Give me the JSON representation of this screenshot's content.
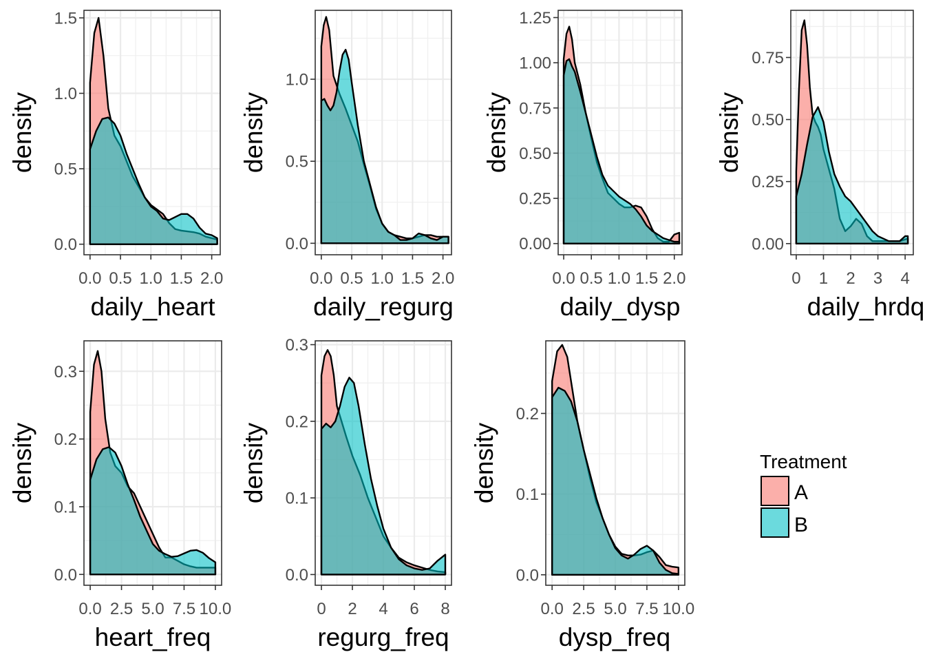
{
  "colors": {
    "A": "#F8766D",
    "B": "#00BFC4"
  },
  "legend": {
    "title": "Treatment",
    "entries": [
      {
        "key": "A",
        "label": "A"
      },
      {
        "key": "B",
        "label": "B"
      }
    ]
  },
  "chart_data": [
    {
      "type": "area",
      "xlabel": "daily_heart",
      "ylabel": "density",
      "xlim": [
        -0.1,
        2.14
      ],
      "ylim": [
        -0.07,
        1.55
      ],
      "xticks": [
        0.0,
        0.5,
        1.0,
        1.5,
        2.0
      ],
      "xtick_labels": [
        "0.0",
        "0.5",
        "1.0",
        "1.5",
        "2.0"
      ],
      "yticks": [
        0.0,
        0.5,
        1.0,
        1.5
      ],
      "ytick_labels": [
        "0.0",
        "0.5",
        "1.0",
        "1.5"
      ],
      "grid": true,
      "series": [
        {
          "name": "A",
          "x": [
            0.0,
            0.07,
            0.14,
            0.22,
            0.3,
            0.4,
            0.5,
            0.6,
            0.7,
            0.8,
            0.9,
            1.0,
            1.1,
            1.2,
            1.3,
            1.4,
            1.5,
            1.6,
            1.7,
            1.8,
            1.9,
            2.0,
            2.09
          ],
          "y": [
            1.07,
            1.4,
            1.5,
            1.25,
            0.9,
            0.72,
            0.65,
            0.55,
            0.45,
            0.38,
            0.31,
            0.26,
            0.23,
            0.2,
            0.14,
            0.1,
            0.09,
            0.085,
            0.08,
            0.07,
            0.05,
            0.04,
            0.03
          ]
        },
        {
          "name": "B",
          "x": [
            0.0,
            0.1,
            0.2,
            0.3,
            0.4,
            0.5,
            0.6,
            0.7,
            0.8,
            0.9,
            1.0,
            1.1,
            1.2,
            1.3,
            1.4,
            1.5,
            1.6,
            1.7,
            1.8,
            1.9,
            2.0,
            2.09
          ],
          "y": [
            0.63,
            0.75,
            0.83,
            0.84,
            0.8,
            0.72,
            0.6,
            0.5,
            0.4,
            0.31,
            0.25,
            0.22,
            0.17,
            0.16,
            0.18,
            0.2,
            0.2,
            0.17,
            0.11,
            0.07,
            0.06,
            0.04
          ]
        }
      ]
    },
    {
      "type": "area",
      "xlabel": "daily_regurg",
      "ylabel": "density",
      "xlim": [
        -0.1,
        2.14
      ],
      "ylim": [
        -0.07,
        1.42
      ],
      "xticks": [
        0.0,
        0.5,
        1.0,
        1.5,
        2.0
      ],
      "xtick_labels": [
        "0.0",
        "0.5",
        "1.0",
        "1.5",
        "2.0"
      ],
      "yticks": [
        0.0,
        0.5,
        1.0
      ],
      "ytick_labels": [
        "0.0",
        "0.5",
        "1.0"
      ],
      "grid": true,
      "series": [
        {
          "name": "A",
          "x": [
            0.0,
            0.04,
            0.08,
            0.13,
            0.2,
            0.3,
            0.4,
            0.5,
            0.6,
            0.7,
            0.8,
            0.9,
            1.0,
            1.1,
            1.2,
            1.3,
            1.4,
            1.5,
            1.6,
            1.7,
            1.8,
            1.9,
            2.0,
            2.09
          ],
          "y": [
            1.2,
            1.33,
            1.38,
            1.3,
            1.02,
            0.91,
            0.82,
            0.72,
            0.62,
            0.48,
            0.35,
            0.21,
            0.12,
            0.07,
            0.05,
            0.04,
            0.03,
            0.03,
            0.04,
            0.05,
            0.05,
            0.04,
            0.04,
            0.04
          ]
        },
        {
          "name": "B",
          "x": [
            0.0,
            0.05,
            0.1,
            0.15,
            0.2,
            0.25,
            0.3,
            0.35,
            0.4,
            0.45,
            0.5,
            0.6,
            0.7,
            0.8,
            0.9,
            1.0,
            1.1,
            1.2,
            1.3,
            1.4,
            1.5,
            1.6,
            1.7,
            1.8,
            1.9,
            2.0,
            2.09
          ],
          "y": [
            0.87,
            0.88,
            0.84,
            0.81,
            0.84,
            0.92,
            1.05,
            1.15,
            1.18,
            1.12,
            0.98,
            0.72,
            0.5,
            0.36,
            0.22,
            0.12,
            0.07,
            0.05,
            0.02,
            0.02,
            0.03,
            0.06,
            0.05,
            0.03,
            0.02,
            0.04,
            0.04
          ]
        }
      ]
    },
    {
      "type": "area",
      "xlabel": "daily_dysp",
      "ylabel": "density",
      "xlim": [
        -0.1,
        2.14
      ],
      "ylim": [
        -0.062,
        1.29
      ],
      "xticks": [
        0.0,
        0.5,
        1.0,
        1.5,
        2.0
      ],
      "xtick_labels": [
        "0.0",
        "0.5",
        "1.0",
        "1.5",
        "2.0"
      ],
      "yticks": [
        0.0,
        0.25,
        0.5,
        0.75,
        1.0,
        1.25
      ],
      "ytick_labels": [
        "0.00",
        "0.25",
        "0.50",
        "0.75",
        "1.00",
        "1.25"
      ],
      "grid": true,
      "series": [
        {
          "name": "A",
          "x": [
            0.0,
            0.05,
            0.1,
            0.15,
            0.2,
            0.3,
            0.4,
            0.5,
            0.6,
            0.7,
            0.8,
            0.9,
            1.0,
            1.1,
            1.2,
            1.3,
            1.4,
            1.5,
            1.6,
            1.7,
            1.8,
            1.9,
            2.0,
            2.09
          ],
          "y": [
            1.02,
            1.16,
            1.2,
            1.13,
            1.0,
            0.88,
            0.72,
            0.58,
            0.45,
            0.36,
            0.28,
            0.25,
            0.22,
            0.2,
            0.2,
            0.21,
            0.2,
            0.15,
            0.08,
            0.03,
            0.01,
            0.01,
            0.05,
            0.06
          ]
        },
        {
          "name": "B",
          "x": [
            0.0,
            0.05,
            0.1,
            0.15,
            0.2,
            0.3,
            0.4,
            0.5,
            0.6,
            0.7,
            0.8,
            0.9,
            1.0,
            1.1,
            1.2,
            1.3,
            1.4,
            1.5,
            1.6,
            1.7,
            1.8,
            1.9,
            2.0,
            2.09
          ],
          "y": [
            0.93,
            1.01,
            1.02,
            0.98,
            0.95,
            0.84,
            0.72,
            0.6,
            0.48,
            0.38,
            0.32,
            0.29,
            0.26,
            0.24,
            0.22,
            0.19,
            0.15,
            0.1,
            0.07,
            0.05,
            0.03,
            0.02,
            0.01,
            0.01
          ]
        }
      ]
    },
    {
      "type": "area",
      "xlabel": "daily_hrdq",
      "ylabel": "density",
      "xlim": [
        -0.2,
        4.3
      ],
      "ylim": [
        -0.045,
        0.94
      ],
      "xticks": [
        0,
        1,
        2,
        3,
        4
      ],
      "xtick_labels": [
        "0",
        "1",
        "2",
        "3",
        "4"
      ],
      "yticks": [
        0.0,
        0.25,
        0.5,
        0.75
      ],
      "ytick_labels": [
        "0.00",
        "0.25",
        "0.50",
        "0.75"
      ],
      "grid": true,
      "series": [
        {
          "name": "A",
          "x": [
            0.0,
            0.1,
            0.2,
            0.3,
            0.4,
            0.5,
            0.6,
            0.7,
            0.8,
            0.9,
            1.0,
            1.2,
            1.4,
            1.6,
            1.8,
            2.0,
            2.2,
            2.4,
            2.6,
            2.8,
            3.0,
            3.4,
            3.8,
            4.1
          ],
          "y": [
            0.29,
            0.62,
            0.86,
            0.9,
            0.8,
            0.63,
            0.52,
            0.49,
            0.47,
            0.44,
            0.38,
            0.3,
            0.22,
            0.1,
            0.05,
            0.07,
            0.1,
            0.08,
            0.03,
            0.01,
            0.01,
            0.01,
            0.01,
            0.02
          ]
        },
        {
          "name": "B",
          "x": [
            0.0,
            0.2,
            0.4,
            0.6,
            0.8,
            1.0,
            1.2,
            1.4,
            1.6,
            1.8,
            2.0,
            2.2,
            2.4,
            2.6,
            2.8,
            3.0,
            3.2,
            3.4,
            3.6,
            3.8,
            4.0,
            4.1
          ],
          "y": [
            0.19,
            0.28,
            0.4,
            0.51,
            0.55,
            0.49,
            0.37,
            0.28,
            0.23,
            0.19,
            0.17,
            0.14,
            0.11,
            0.08,
            0.05,
            0.03,
            0.02,
            0.01,
            0.01,
            0.01,
            0.03,
            0.03
          ]
        }
      ]
    },
    {
      "type": "area",
      "xlabel": "heart_freq",
      "ylabel": "density",
      "xlim": [
        -0.5,
        10.5
      ],
      "ylim": [
        -0.016,
        0.345
      ],
      "xticks": [
        0.0,
        2.5,
        5.0,
        7.5,
        10.0
      ],
      "xtick_labels": [
        "0.0",
        "2.5",
        "5.0",
        "7.5",
        "10.0"
      ],
      "yticks": [
        0.0,
        0.1,
        0.2,
        0.3
      ],
      "ytick_labels": [
        "0.0",
        "0.1",
        "0.2",
        "0.3"
      ],
      "grid": true,
      "series": [
        {
          "name": "A",
          "x": [
            0.0,
            0.3,
            0.6,
            0.9,
            1.2,
            1.6,
            2.0,
            2.5,
            3.0,
            3.5,
            4.0,
            4.5,
            5.0,
            5.5,
            6.0,
            6.5,
            7.0,
            7.5,
            8.0,
            8.5,
            9.0,
            10.0
          ],
          "y": [
            0.24,
            0.31,
            0.33,
            0.3,
            0.23,
            0.18,
            0.16,
            0.15,
            0.13,
            0.12,
            0.1,
            0.08,
            0.06,
            0.04,
            0.025,
            0.025,
            0.02,
            0.015,
            0.012,
            0.01,
            0.01,
            0.01
          ]
        },
        {
          "name": "B",
          "x": [
            0.0,
            0.5,
            1.0,
            1.5,
            2.0,
            2.5,
            3.0,
            3.5,
            4.0,
            4.5,
            5.0,
            5.5,
            6.0,
            6.5,
            7.0,
            7.5,
            8.0,
            8.5,
            9.0,
            9.5,
            10.0
          ],
          "y": [
            0.14,
            0.17,
            0.185,
            0.188,
            0.18,
            0.16,
            0.133,
            0.11,
            0.085,
            0.065,
            0.045,
            0.035,
            0.03,
            0.026,
            0.027,
            0.031,
            0.035,
            0.036,
            0.032,
            0.024,
            0.018
          ]
        }
      ]
    },
    {
      "type": "area",
      "xlabel": "regurg_freq",
      "ylabel": "density",
      "xlim": [
        -0.4,
        8.4
      ],
      "ylim": [
        -0.014,
        0.305
      ],
      "xticks": [
        0,
        2,
        4,
        6,
        8
      ],
      "xtick_labels": [
        "0",
        "2",
        "4",
        "6",
        "8"
      ],
      "yticks": [
        0.0,
        0.1,
        0.2,
        0.3
      ],
      "ytick_labels": [
        "0.0",
        "0.1",
        "0.2",
        "0.3"
      ],
      "grid": true,
      "series": [
        {
          "name": "A",
          "x": [
            0.0,
            0.2,
            0.4,
            0.6,
            0.8,
            1.0,
            1.3,
            1.6,
            2.0,
            2.5,
            3.0,
            3.5,
            4.0,
            4.5,
            5.0,
            5.5,
            6.0,
            6.5,
            7.0,
            7.5,
            8.0
          ],
          "y": [
            0.26,
            0.285,
            0.293,
            0.285,
            0.26,
            0.22,
            0.2,
            0.18,
            0.155,
            0.13,
            0.1,
            0.075,
            0.05,
            0.035,
            0.022,
            0.016,
            0.012,
            0.009,
            0.006,
            0.004,
            0.003
          ]
        },
        {
          "name": "B",
          "x": [
            0.0,
            0.3,
            0.6,
            0.9,
            1.2,
            1.5,
            1.8,
            2.1,
            2.4,
            2.8,
            3.2,
            3.6,
            4.0,
            4.5,
            5.0,
            5.5,
            6.0,
            6.5,
            7.0,
            7.5,
            8.0
          ],
          "y": [
            0.19,
            0.197,
            0.192,
            0.2,
            0.22,
            0.245,
            0.257,
            0.25,
            0.22,
            0.17,
            0.125,
            0.09,
            0.06,
            0.035,
            0.02,
            0.012,
            0.008,
            0.006,
            0.008,
            0.018,
            0.026
          ]
        }
      ]
    },
    {
      "type": "area",
      "xlabel": "dysp_freq",
      "ylabel": "density",
      "xlim": [
        -0.5,
        10.5
      ],
      "ylim": [
        -0.013,
        0.29
      ],
      "xticks": [
        0.0,
        2.5,
        5.0,
        7.5,
        10.0
      ],
      "xtick_labels": [
        "0.0",
        "2.5",
        "5.0",
        "7.5",
        "10.0"
      ],
      "yticks": [
        0.0,
        0.1,
        0.2
      ],
      "ytick_labels": [
        "0.0",
        "0.1",
        "0.2"
      ],
      "grid": true,
      "series": [
        {
          "name": "A",
          "x": [
            0.0,
            0.4,
            0.8,
            1.2,
            1.6,
            2.0,
            2.5,
            3.0,
            3.5,
            4.0,
            4.5,
            5.0,
            5.5,
            6.0,
            6.5,
            7.0,
            7.5,
            8.0,
            8.5,
            9.0,
            9.5,
            10.0
          ],
          "y": [
            0.24,
            0.277,
            0.285,
            0.27,
            0.23,
            0.19,
            0.155,
            0.12,
            0.09,
            0.07,
            0.05,
            0.035,
            0.026,
            0.024,
            0.024,
            0.025,
            0.028,
            0.03,
            0.022,
            0.012,
            0.01,
            0.009
          ]
        },
        {
          "name": "B",
          "x": [
            0.0,
            0.5,
            1.0,
            1.5,
            2.0,
            2.5,
            3.0,
            3.5,
            4.0,
            4.5,
            5.0,
            5.5,
            6.0,
            6.5,
            7.0,
            7.5,
            8.0,
            8.5,
            9.0,
            9.5,
            10.0
          ],
          "y": [
            0.22,
            0.232,
            0.228,
            0.215,
            0.19,
            0.155,
            0.125,
            0.095,
            0.07,
            0.05,
            0.033,
            0.024,
            0.02,
            0.025,
            0.032,
            0.036,
            0.03,
            0.015,
            0.006,
            0.002,
            0.001
          ]
        }
      ]
    }
  ]
}
